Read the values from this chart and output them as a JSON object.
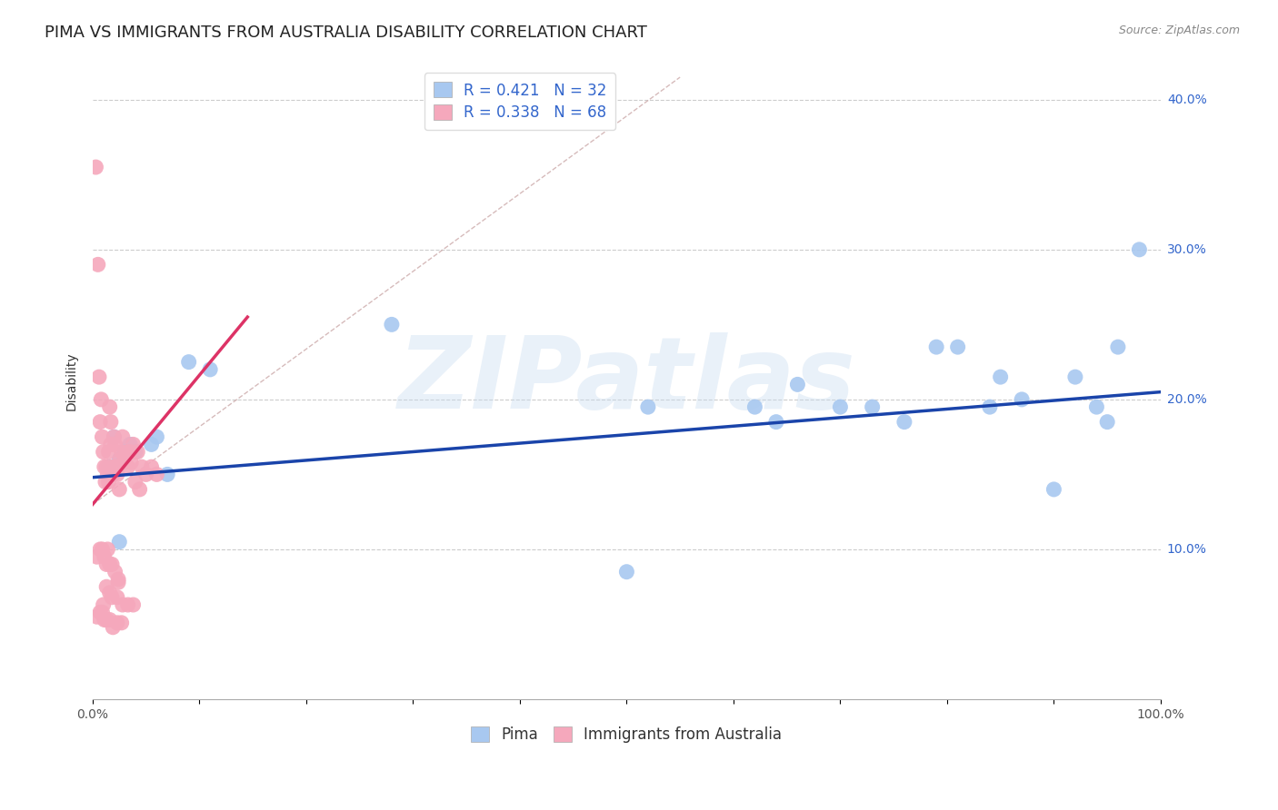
{
  "title": "PIMA VS IMMIGRANTS FROM AUSTRALIA DISABILITY CORRELATION CHART",
  "source": "Source: ZipAtlas.com",
  "ylabel": "Disability",
  "xlim": [
    0,
    1.0
  ],
  "ylim": [
    0.0,
    0.425
  ],
  "xticks": [
    0.0,
    0.1,
    0.2,
    0.3,
    0.4,
    0.5,
    0.6,
    0.7,
    0.8,
    0.9,
    1.0
  ],
  "xticklabels": [
    "0.0%",
    "",
    "",
    "",
    "",
    "",
    "",
    "",
    "",
    "",
    "100.0%"
  ],
  "ytick_positions": [
    0.1,
    0.2,
    0.3,
    0.4
  ],
  "ytick_labels": [
    "10.0%",
    "20.0%",
    "30.0%",
    "40.0%"
  ],
  "blue_color": "#A8C8F0",
  "pink_color": "#F5A8BC",
  "blue_line_color": "#1A44AA",
  "pink_line_color": "#DD3366",
  "dash_line_color": "#CCAAAA",
  "blue_R": 0.421,
  "blue_N": 32,
  "pink_R": 0.338,
  "pink_N": 68,
  "watermark_text": "ZIPatlas",
  "legend_label_blue": "Pima",
  "legend_label_pink": "Immigrants from Australia",
  "blue_scatter_x": [
    0.02,
    0.035,
    0.025,
    0.04,
    0.055,
    0.06,
    0.025,
    0.015,
    0.07,
    0.03,
    0.28,
    0.09,
    0.11,
    0.5,
    0.52,
    0.62,
    0.64,
    0.66,
    0.7,
    0.73,
    0.76,
    0.79,
    0.81,
    0.84,
    0.85,
    0.87,
    0.9,
    0.92,
    0.94,
    0.96,
    0.95,
    0.98
  ],
  "blue_scatter_y": [
    0.175,
    0.17,
    0.16,
    0.165,
    0.17,
    0.175,
    0.105,
    0.155,
    0.15,
    0.165,
    0.25,
    0.225,
    0.22,
    0.085,
    0.195,
    0.195,
    0.185,
    0.21,
    0.195,
    0.195,
    0.185,
    0.235,
    0.235,
    0.195,
    0.215,
    0.2,
    0.14,
    0.215,
    0.195,
    0.235,
    0.185,
    0.3
  ],
  "pink_scatter_x": [
    0.003,
    0.005,
    0.006,
    0.007,
    0.008,
    0.009,
    0.01,
    0.011,
    0.012,
    0.013,
    0.014,
    0.015,
    0.015,
    0.016,
    0.017,
    0.017,
    0.018,
    0.019,
    0.02,
    0.02,
    0.021,
    0.022,
    0.023,
    0.025,
    0.026,
    0.027,
    0.028,
    0.03,
    0.031,
    0.033,
    0.035,
    0.036,
    0.038,
    0.04,
    0.042,
    0.044,
    0.046,
    0.05,
    0.055,
    0.06,
    0.004,
    0.007,
    0.009,
    0.011,
    0.013,
    0.014,
    0.016,
    0.018,
    0.021,
    0.024,
    0.004,
    0.007,
    0.009,
    0.01,
    0.011,
    0.013,
    0.016,
    0.019,
    0.023,
    0.027,
    0.013,
    0.016,
    0.018,
    0.023,
    0.028,
    0.033,
    0.038,
    0.024
  ],
  "pink_scatter_y": [
    0.355,
    0.29,
    0.215,
    0.185,
    0.2,
    0.175,
    0.165,
    0.155,
    0.145,
    0.155,
    0.15,
    0.145,
    0.165,
    0.195,
    0.185,
    0.17,
    0.155,
    0.15,
    0.175,
    0.155,
    0.17,
    0.155,
    0.15,
    0.14,
    0.16,
    0.165,
    0.175,
    0.158,
    0.165,
    0.155,
    0.165,
    0.158,
    0.17,
    0.145,
    0.165,
    0.14,
    0.155,
    0.15,
    0.155,
    0.15,
    0.095,
    0.1,
    0.1,
    0.095,
    0.09,
    0.1,
    0.09,
    0.09,
    0.085,
    0.08,
    0.055,
    0.058,
    0.058,
    0.063,
    0.053,
    0.053,
    0.053,
    0.048,
    0.051,
    0.051,
    0.075,
    0.071,
    0.068,
    0.068,
    0.063,
    0.063,
    0.063,
    0.078
  ],
  "blue_line_x": [
    0.0,
    1.0
  ],
  "blue_line_y": [
    0.148,
    0.205
  ],
  "pink_line_x": [
    0.0,
    0.145
  ],
  "pink_line_y": [
    0.13,
    0.255
  ],
  "dash_line_x": [
    0.0,
    0.55
  ],
  "dash_line_y": [
    0.13,
    0.415
  ],
  "grid_color": "#CCCCCC",
  "background_color": "#FFFFFF",
  "title_fontsize": 13,
  "axis_label_fontsize": 10,
  "tick_fontsize": 10,
  "legend_fontsize": 12
}
